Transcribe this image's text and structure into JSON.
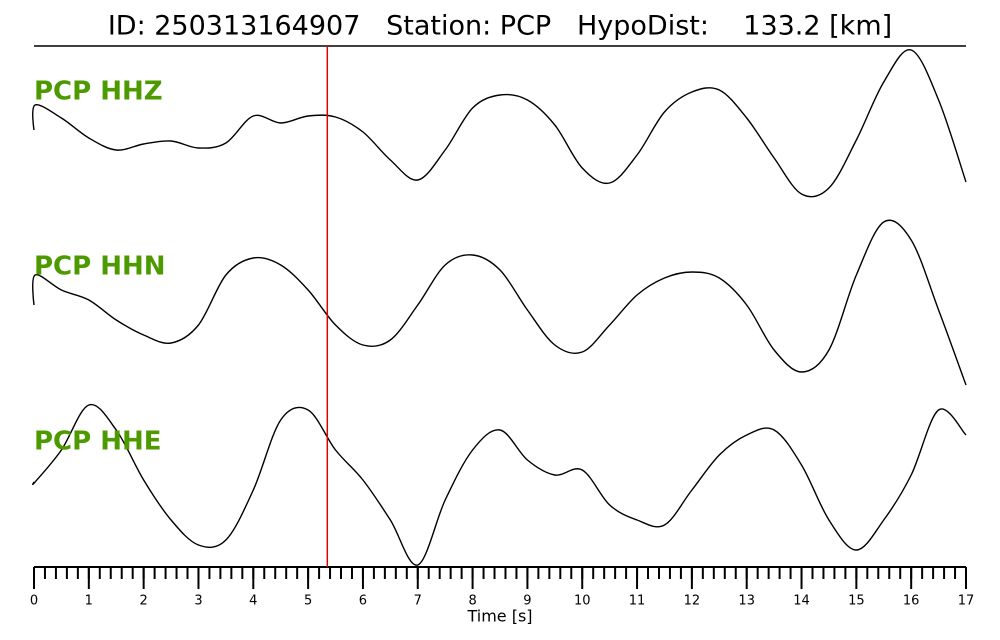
{
  "chart_data": {
    "type": "line",
    "title": "ID: 250313164907   Station: PCP   HypoDist:    133.2 [km]",
    "xlabel": "Time [s]",
    "xlim": [
      0,
      17
    ],
    "xticks": [
      0,
      1,
      2,
      3,
      4,
      5,
      6,
      7,
      8,
      9,
      10,
      11,
      12,
      13,
      14,
      15,
      16,
      17
    ],
    "xminor_step": 0.2,
    "panel_ylim": [
      -90,
      90
    ],
    "pick_time": 5.35,
    "pick_color": "#e00000",
    "label_color": "#4c9a00",
    "x": [
      0,
      0.02,
      0.5,
      1,
      1.5,
      2,
      2.5,
      3,
      3.5,
      4,
      4.5,
      5,
      5.5,
      6,
      6.5,
      7,
      7.5,
      8,
      8.5,
      9,
      9.5,
      10,
      10.5,
      11,
      11.5,
      12,
      12.5,
      13,
      13.5,
      14,
      14.5,
      15,
      15.5,
      16,
      16.5,
      17
    ],
    "series": [
      {
        "name": "PCP HHZ",
        "color": "#000000",
        "values": [
          0,
          25,
          12,
          -8,
          -20,
          -14,
          -11,
          -18,
          -13,
          14,
          7,
          14,
          13,
          -2,
          -30,
          -50,
          -20,
          22,
          35,
          30,
          5,
          -38,
          -53,
          -25,
          18,
          38,
          40,
          12,
          -28,
          -64,
          -58,
          -10,
          48,
          80,
          30,
          -52
        ]
      },
      {
        "name": "PCP HHN",
        "color": "#000000",
        "values": [
          0,
          30,
          15,
          5,
          -15,
          -30,
          -38,
          -20,
          30,
          47,
          40,
          15,
          -20,
          -40,
          -35,
          0,
          40,
          50,
          35,
          -5,
          -40,
          -47,
          -20,
          10,
          27,
          33,
          27,
          0,
          -45,
          -67,
          -45,
          30,
          83,
          65,
          -5,
          -80
        ]
      },
      {
        "name": "PCP HHE",
        "color": "#000000",
        "values": [
          -2,
          -2,
          30,
          75,
          50,
          0,
          -40,
          -65,
          -60,
          -10,
          60,
          70,
          30,
          0,
          -40,
          -85,
          -20,
          30,
          50,
          20,
          5,
          10,
          -25,
          -40,
          -45,
          -10,
          25,
          45,
          50,
          15,
          -40,
          -70,
          -40,
          5,
          70,
          45
        ]
      }
    ]
  }
}
